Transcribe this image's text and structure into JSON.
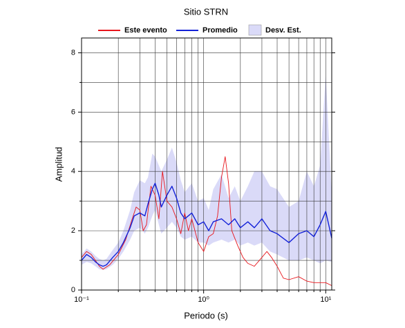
{
  "chart_data": {
    "type": "line",
    "title": "Sitio STRN",
    "x_label": "Periodo (s)",
    "y_label": "Amplitud",
    "x_log": true,
    "xlim": [
      0.1,
      11.2
    ],
    "ylim": [
      0,
      8.5
    ],
    "xticks": [
      {
        "value": 0.1,
        "label": "10⁻¹"
      },
      {
        "value": 1,
        "label": "10⁰"
      },
      {
        "value": 10,
        "label": "10¹"
      }
    ],
    "yticks": [
      0,
      2,
      4,
      6,
      8
    ],
    "y_minor_grid": [
      1,
      3,
      5,
      7
    ],
    "x_minor_grid": [
      0.2,
      0.3,
      0.4,
      0.5,
      0.6,
      0.7,
      0.8,
      0.9,
      2,
      3,
      4,
      5,
      6,
      7,
      8,
      9
    ],
    "grid": true,
    "legend_position": "top",
    "series": [
      {
        "name": "Este evento",
        "color": "#e8151b",
        "x": [
          0.1,
          0.11,
          0.12,
          0.13,
          0.14,
          0.15,
          0.17,
          0.2,
          0.23,
          0.26,
          0.28,
          0.3,
          0.32,
          0.34,
          0.37,
          0.4,
          0.43,
          0.46,
          0.5,
          0.55,
          0.6,
          0.65,
          0.7,
          0.75,
          0.8,
          0.9,
          1.0,
          1.1,
          1.2,
          1.3,
          1.4,
          1.5,
          1.6,
          1.7,
          1.9,
          2.1,
          2.3,
          2.6,
          3.0,
          3.3,
          3.6,
          4.0,
          4.5,
          5.0,
          6.0,
          7,
          8,
          9,
          10,
          11.2
        ],
        "values": [
          1.1,
          1.3,
          1.2,
          1.0,
          0.8,
          0.7,
          0.85,
          1.2,
          1.7,
          2.4,
          2.8,
          2.7,
          2.0,
          2.2,
          3.5,
          3.2,
          2.4,
          4.0,
          3.0,
          2.8,
          2.4,
          1.9,
          2.6,
          2.0,
          2.4,
          1.6,
          1.3,
          1.8,
          1.9,
          2.5,
          3.8,
          4.5,
          3.6,
          2.0,
          1.5,
          1.1,
          0.9,
          0.8,
          1.1,
          1.3,
          1.1,
          0.8,
          0.4,
          0.35,
          0.45,
          0.3,
          0.25,
          0.25,
          0.25,
          0.15
        ]
      },
      {
        "name": "Promedio",
        "color": "#1321d8",
        "x": [
          0.1,
          0.11,
          0.12,
          0.13,
          0.14,
          0.15,
          0.16,
          0.18,
          0.2,
          0.22,
          0.25,
          0.27,
          0.3,
          0.33,
          0.35,
          0.38,
          0.4,
          0.43,
          0.45,
          0.5,
          0.55,
          0.6,
          0.65,
          0.7,
          0.8,
          0.9,
          1.0,
          1.1,
          1.2,
          1.4,
          1.6,
          1.8,
          2.0,
          2.3,
          2.6,
          3.0,
          3.5,
          4.0,
          5.0,
          6.0,
          7.0,
          8.0,
          9.0,
          10,
          11.2
        ],
        "values": [
          1.0,
          1.2,
          1.1,
          0.95,
          0.85,
          0.8,
          0.85,
          1.1,
          1.3,
          1.6,
          2.1,
          2.5,
          2.6,
          2.5,
          2.9,
          3.4,
          3.6,
          3.2,
          2.8,
          3.2,
          3.5,
          3.1,
          2.6,
          2.4,
          2.6,
          2.2,
          2.3,
          2.0,
          2.3,
          2.4,
          2.2,
          2.4,
          2.1,
          2.3,
          2.1,
          2.4,
          2.0,
          1.9,
          1.6,
          1.9,
          2.0,
          1.8,
          2.2,
          2.65,
          1.75
        ]
      }
    ],
    "band": {
      "name": "Desv. Est.",
      "color": "#dadaf8",
      "x": [
        0.1,
        0.11,
        0.12,
        0.13,
        0.14,
        0.15,
        0.16,
        0.18,
        0.2,
        0.22,
        0.25,
        0.27,
        0.3,
        0.33,
        0.35,
        0.38,
        0.4,
        0.43,
        0.45,
        0.5,
        0.55,
        0.6,
        0.65,
        0.7,
        0.8,
        0.9,
        1.0,
        1.1,
        1.2,
        1.4,
        1.6,
        1.8,
        2.0,
        2.3,
        2.6,
        3.0,
        3.5,
        4.0,
        5.0,
        6.0,
        7.0,
        8.0,
        9.0,
        10,
        11.2
      ],
      "lower": [
        0.85,
        0.95,
        0.9,
        0.8,
        0.7,
        0.68,
        0.7,
        0.85,
        1.05,
        1.3,
        1.7,
        2.0,
        2.1,
        1.9,
        2.1,
        2.5,
        2.7,
        2.2,
        1.9,
        2.1,
        2.3,
        2.1,
        1.8,
        1.7,
        1.8,
        1.6,
        1.6,
        1.5,
        1.6,
        1.7,
        1.6,
        1.7,
        1.5,
        1.6,
        1.5,
        1.6,
        1.3,
        1.2,
        1.0,
        1.0,
        1.1,
        1.0,
        0.9,
        1.0,
        0.95
      ],
      "upper": [
        1.2,
        1.4,
        1.3,
        1.15,
        1.05,
        1.0,
        1.05,
        1.35,
        1.6,
        2.0,
        2.7,
        3.3,
        3.7,
        3.6,
        3.8,
        4.6,
        4.5,
        4.2,
        4.0,
        4.4,
        4.8,
        4.3,
        3.7,
        3.3,
        3.6,
        3.0,
        3.1,
        2.7,
        3.4,
        3.9,
        3.1,
        3.5,
        3.0,
        3.5,
        4.0,
        4.0,
        3.5,
        3.4,
        2.8,
        3.0,
        4.0,
        3.5,
        4.2,
        7.3,
        3.2
      ]
    }
  }
}
